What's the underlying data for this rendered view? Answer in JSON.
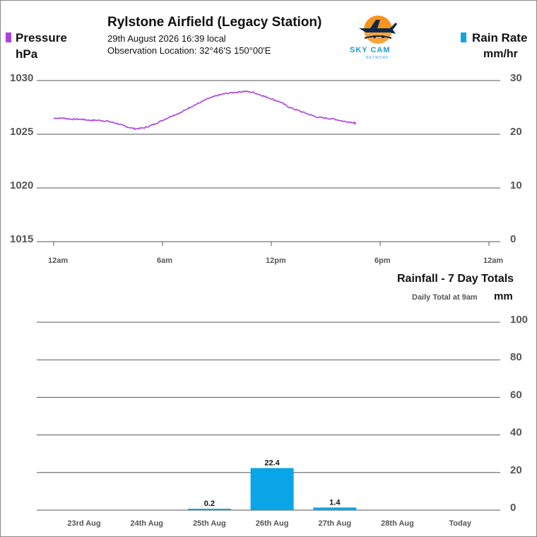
{
  "station": {
    "title": "Rylstone Airfield (Legacy Station)",
    "date_line": "29th August 2026  16:39 local",
    "location_line": "Observation Location: 32°46'S 150°00'E"
  },
  "logo": {
    "name": "SKY CAM",
    "sub": "NETWORK",
    "icon": "plane-sun-logo"
  },
  "colors": {
    "pressure": "#aa44dd",
    "rain": "#0aa5e6",
    "grid": "#555555",
    "label": "#555555"
  },
  "chart_data": [
    {
      "type": "line",
      "left_axis": {
        "title": "Pressure",
        "unit": "hPa",
        "range": [
          1015,
          1030
        ],
        "ticks": [
          "1030",
          "1025",
          "1020",
          "1015"
        ]
      },
      "right_axis": {
        "title": "Rain Rate",
        "unit": "mm/hr",
        "range": [
          0,
          30
        ],
        "ticks": [
          "30",
          "20",
          "10",
          "0"
        ]
      },
      "x_ticks": [
        "12am",
        "6am",
        "12pm",
        "6pm",
        "12am"
      ],
      "x_range_hours": [
        0,
        24
      ],
      "series": [
        {
          "axis": "left",
          "points": [
            [
              0.0,
              1026.5
            ],
            [
              0.5,
              1026.5
            ],
            [
              1.0,
              1026.4
            ],
            [
              1.5,
              1026.4
            ],
            [
              2.0,
              1026.3
            ],
            [
              2.5,
              1026.3
            ],
            [
              3.0,
              1026.2
            ],
            [
              3.5,
              1026.0
            ],
            [
              4.0,
              1025.7
            ],
            [
              4.5,
              1025.5
            ],
            [
              5.0,
              1025.6
            ],
            [
              5.5,
              1025.9
            ],
            [
              6.0,
              1026.3
            ],
            [
              6.5,
              1026.7
            ],
            [
              7.0,
              1027.0
            ],
            [
              7.5,
              1027.5
            ],
            [
              8.0,
              1027.9
            ],
            [
              8.5,
              1028.3
            ],
            [
              9.0,
              1028.6
            ],
            [
              9.5,
              1028.8
            ],
            [
              10.0,
              1028.9
            ],
            [
              10.5,
              1029.0
            ],
            [
              11.0,
              1028.9
            ],
            [
              11.5,
              1028.6
            ],
            [
              12.0,
              1028.3
            ],
            [
              12.5,
              1028.0
            ],
            [
              13.0,
              1027.5
            ],
            [
              13.5,
              1027.2
            ],
            [
              14.0,
              1026.9
            ],
            [
              14.5,
              1026.6
            ],
            [
              15.0,
              1026.5
            ],
            [
              15.5,
              1026.4
            ],
            [
              16.0,
              1026.2
            ],
            [
              16.5,
              1026.1
            ],
            [
              16.65,
              1026.0
            ]
          ]
        }
      ]
    },
    {
      "type": "bar",
      "title": "Rainfall - 7 Day Totals",
      "subtitle": "Daily Total at 9am",
      "unit": "mm",
      "categories": [
        "23rd Aug",
        "24th Aug",
        "25th Aug",
        "26th Aug",
        "27th Aug",
        "28th Aug",
        "Today"
      ],
      "values": [
        0,
        0,
        0.2,
        22.4,
        1.4,
        0,
        0
      ],
      "data_labels": [
        "",
        "",
        "0.2",
        "22.4",
        "1.4",
        "",
        ""
      ],
      "ylim": [
        0,
        100
      ],
      "y_ticks": [
        "100",
        "80",
        "60",
        "40",
        "20",
        "0"
      ]
    }
  ]
}
